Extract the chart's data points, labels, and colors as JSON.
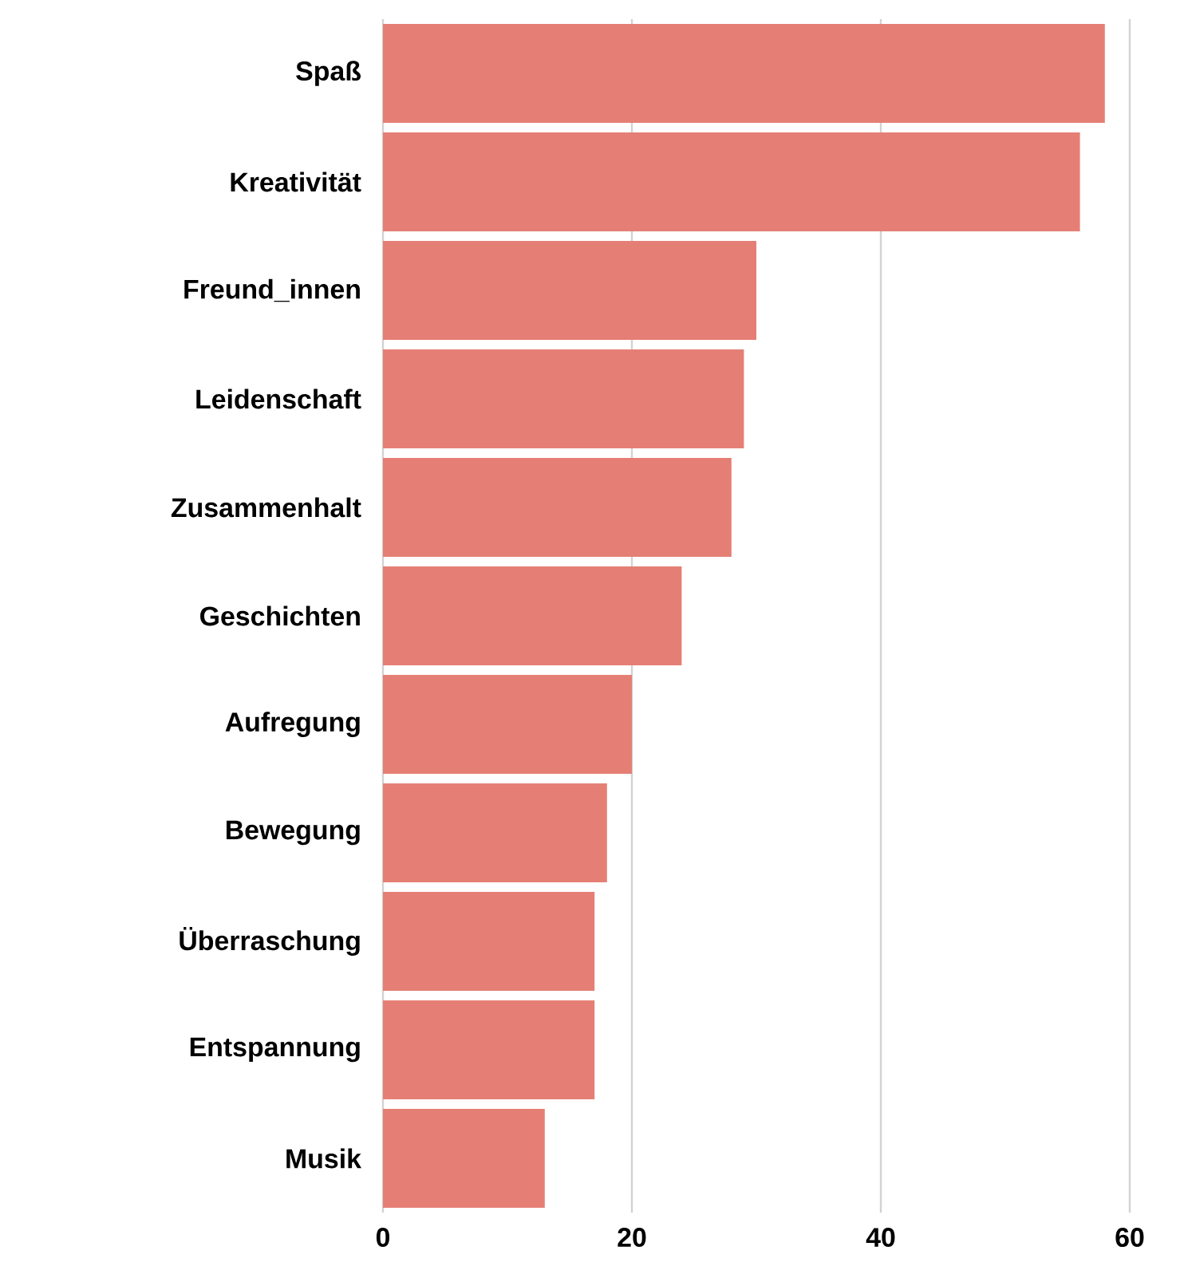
{
  "chart_data": {
    "type": "bar",
    "orientation": "horizontal",
    "categories": [
      "Spaß",
      "Kreativität",
      "Freund_innen",
      "Leidenschaft",
      "Zusammenhalt",
      "Geschichten",
      "Aufregung",
      "Bewegung",
      "Überraschung",
      "Entspannung",
      "Musik"
    ],
    "values": [
      58,
      56,
      30,
      29,
      28,
      24,
      20,
      18,
      17,
      17,
      13
    ],
    "color": "#e57f75",
    "xlim": [
      0,
      60
    ],
    "xticks": [
      0,
      20,
      40,
      60
    ],
    "grid": "x"
  }
}
